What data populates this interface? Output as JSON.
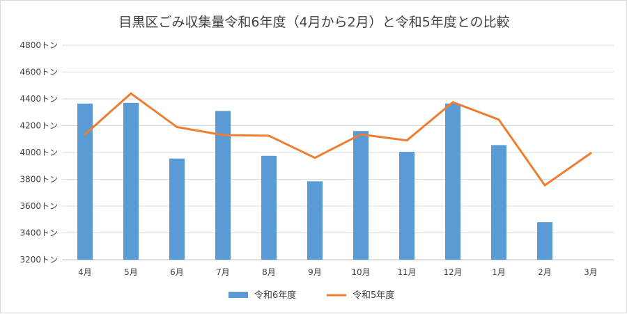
{
  "chart_data": {
    "type": "bar",
    "title": "目黒区ごみ収集量令和6年度（4月から2月）と令和5年度との比較",
    "categories": [
      "4月",
      "5月",
      "6月",
      "7月",
      "8月",
      "9月",
      "10月",
      "11月",
      "12月",
      "1月",
      "2月",
      "3月"
    ],
    "y_ticks": [
      "3200トン",
      "3400トン",
      "3600トン",
      "3800トン",
      "4000トン",
      "4200トン",
      "4400トン",
      "4600トン",
      "4800トン"
    ],
    "ylim": [
      3200,
      4800
    ],
    "grid": true,
    "legend_position": "bottom",
    "series": [
      {
        "name": "令和6年度",
        "type": "bar",
        "color": "#5B9BD5",
        "values": [
          4365,
          4370,
          3955,
          4310,
          3975,
          3785,
          4160,
          4005,
          4365,
          4055,
          3480,
          null
        ]
      },
      {
        "name": "令和5年度",
        "type": "line",
        "color": "#ED7D31",
        "values": [
          4135,
          4440,
          4190,
          4130,
          4125,
          3960,
          4135,
          4090,
          4375,
          4245,
          3755,
          3995
        ]
      }
    ]
  }
}
